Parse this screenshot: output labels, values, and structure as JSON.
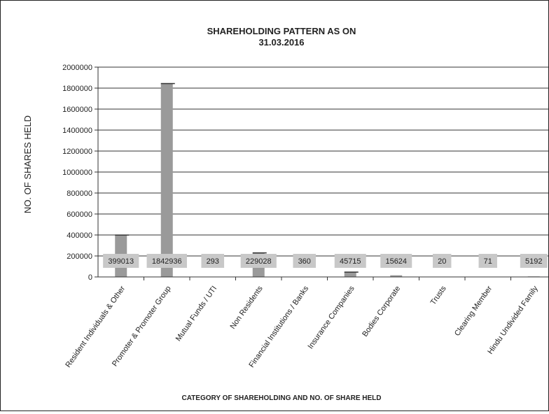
{
  "chart_data": {
    "type": "bar",
    "title_line1": "SHAREHOLDING PATTERN AS ON",
    "title_line2": "31.03.2016",
    "xlabel": "CATEGORY OF SHAREHOLDING AND NO. OF SHARE HELD",
    "ylabel": "NO. OF SHARES HELD",
    "ylim": [
      0,
      2000000
    ],
    "yticks": [
      0,
      200000,
      400000,
      600000,
      800000,
      1000000,
      1200000,
      1400000,
      1600000,
      1800000,
      2000000
    ],
    "ytick_labels": [
      "0",
      "200000",
      "400000",
      "600000",
      "800000",
      "1000000",
      "1200000",
      "1400000",
      "1600000",
      "1800000",
      "2000000"
    ],
    "grid": true,
    "categories": [
      "Resident Individuals & Other",
      "Promoter & Promoter Group",
      "Mutual Funds / UTI",
      "Non Residents",
      "Financial Institutions / Banks",
      "Insurance Companies",
      "Bodies Corporate",
      "Trusts",
      "Clearing Member",
      "Hindu Undivided Family"
    ],
    "values": [
      399013,
      1842936,
      293,
      229028,
      360,
      45715,
      15624,
      20,
      71,
      5192
    ],
    "data_labels": [
      "399013",
      "1842936",
      "293",
      "229028",
      "360",
      "45715",
      "15624",
      "20",
      "71",
      "5192"
    ],
    "bar_color": "#9a9a9a",
    "label_box_color": "#c8c8c8"
  }
}
